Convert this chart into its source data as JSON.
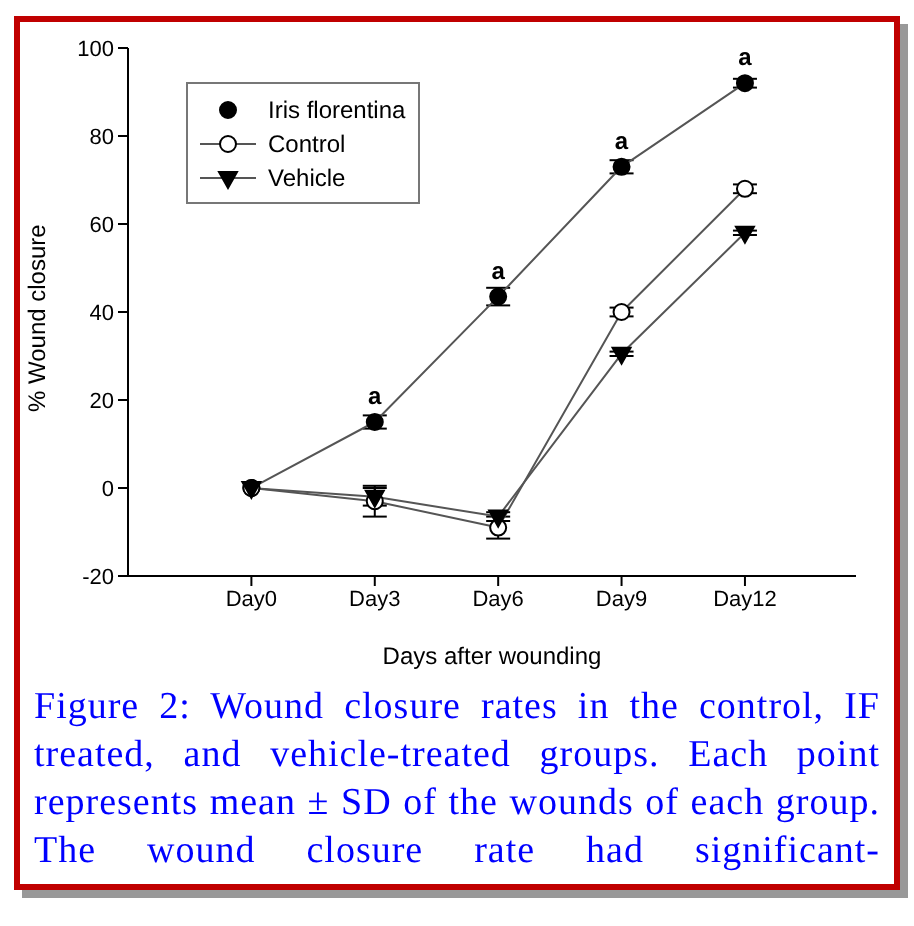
{
  "chart_data": {
    "type": "line",
    "xlabel": "Days after wounding",
    "ylabel": "% Wound closure",
    "categories": [
      "Day0",
      "Day3",
      "Day6",
      "Day9",
      "Day12"
    ],
    "series": [
      {
        "name": "Iris florentina",
        "color": "#000000",
        "marker": "circle",
        "values": [
          0,
          15,
          43.5,
          73,
          92
        ],
        "errors": [
          null,
          1.5,
          2,
          1.5,
          1
        ]
      },
      {
        "name": "Control",
        "color": "#ffffff",
        "marker": "circle",
        "values": [
          0,
          -3,
          -9,
          40,
          68
        ],
        "errors": [
          null,
          3.5,
          2.5,
          1,
          1
        ]
      },
      {
        "name": "Vehicle",
        "color": "#000000",
        "marker": "triangle",
        "values": [
          0,
          -2,
          -6.5,
          30.5,
          58
        ],
        "errors": [
          null,
          2,
          1,
          0.5,
          0.5
        ]
      }
    ],
    "ylim": [
      -20,
      100
    ],
    "yticks": [
      -20,
      0,
      20,
      40,
      60,
      80,
      100
    ],
    "grid": false,
    "legend": "top left",
    "annotations": [
      {
        "text": "a",
        "x": "Day3",
        "y": 15
      },
      {
        "text": "a",
        "x": "Day6",
        "y": 43.5
      },
      {
        "text": "a",
        "x": "Day9",
        "y": 73
      },
      {
        "text": "a",
        "x": "Day12",
        "y": 92
      },
      "Figure 2: Wound closure rates in the control, IF treated, and vehicle-treated groups. Each point represents mean ± SD of the wounds of each group. The wound closure rate had significant-"
    ]
  }
}
